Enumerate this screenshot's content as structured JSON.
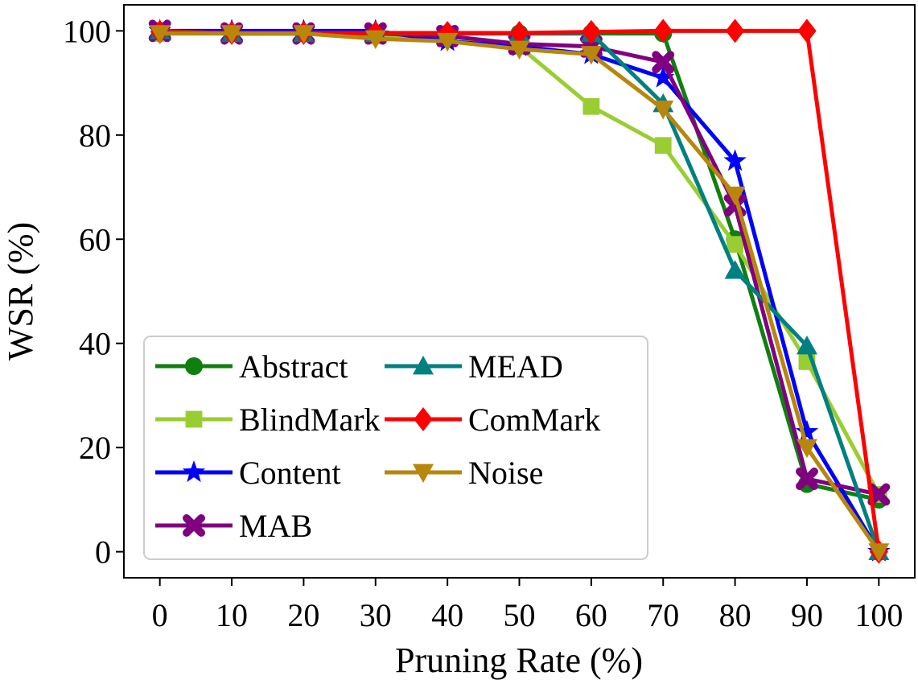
{
  "chart_data": {
    "type": "line",
    "title": "",
    "xlabel": "Pruning Rate (%)",
    "ylabel": "WSR (%)",
    "x": [
      0,
      10,
      20,
      30,
      40,
      50,
      60,
      70,
      80,
      90,
      100
    ],
    "xticks": [
      "0",
      "10",
      "20",
      "30",
      "40",
      "50",
      "60",
      "70",
      "80",
      "90",
      "100"
    ],
    "yticks": [
      "0",
      "20",
      "40",
      "60",
      "80",
      "100"
    ],
    "xlim": [
      -5,
      105
    ],
    "ylim": [
      -5,
      105
    ],
    "grid": false,
    "legend_position": "lower-left",
    "series": [
      {
        "name": "Abstract",
        "color": "#0f7f0f",
        "marker": "circle",
        "values": [
          100,
          99.5,
          99.5,
          99.5,
          99.5,
          99.5,
          99.5,
          99.5,
          60,
          13,
          10
        ]
      },
      {
        "name": "BlindMark",
        "color": "#9acd32",
        "marker": "square",
        "values": [
          99.5,
          99.5,
          99.5,
          99,
          99,
          97,
          85.5,
          78,
          59,
          36.5,
          11
        ]
      },
      {
        "name": "Content",
        "color": "#0000ff",
        "marker": "star",
        "values": [
          100,
          100,
          100,
          100,
          98,
          97,
          95.5,
          91,
          75,
          23,
          0
        ]
      },
      {
        "name": "MAB",
        "color": "#800080",
        "marker": "x",
        "values": [
          100,
          99.5,
          99.5,
          99.5,
          99,
          97.5,
          97,
          94,
          66.5,
          14,
          11
        ]
      },
      {
        "name": "MEAD",
        "color": "#008080",
        "marker": "triangle-up",
        "values": [
          100,
          99.5,
          99.5,
          99.5,
          99.5,
          99.5,
          99.5,
          86,
          54,
          39.5,
          0
        ]
      },
      {
        "name": "ComMark",
        "color": "#ff0000",
        "marker": "diamond",
        "values": [
          99.8,
          99.6,
          99.6,
          99.6,
          99.6,
          99.6,
          99.8,
          100,
          100,
          100,
          0
        ]
      },
      {
        "name": "Noise",
        "color": "#b8860b",
        "marker": "triangle-down",
        "values": [
          99.5,
          99.5,
          99.5,
          98.5,
          98,
          96.5,
          95.5,
          85,
          68.5,
          20,
          0
        ]
      }
    ]
  }
}
